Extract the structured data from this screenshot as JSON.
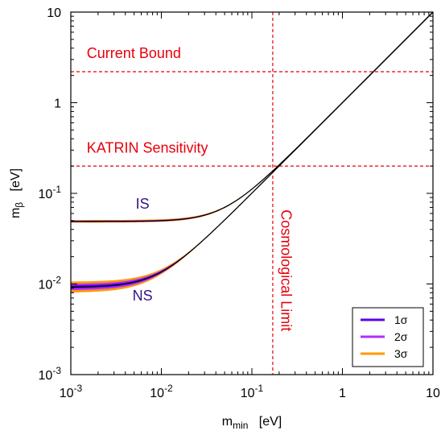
{
  "chart_data": {
    "type": "line",
    "xscale": "log",
    "yscale": "log",
    "xlim": [
      0.001,
      10
    ],
    "ylim": [
      0.001,
      10
    ],
    "xlabel": {
      "main": "m",
      "sub": "min",
      "unit": "[eV]"
    },
    "ylabel": {
      "main": "m",
      "sub": "β",
      "unit": "[eV]"
    },
    "x_ticks": [
      {
        "value": 0.001,
        "base": "10",
        "exp": "-3"
      },
      {
        "value": 0.01,
        "base": "10",
        "exp": "-2"
      },
      {
        "value": 0.1,
        "base": "10",
        "exp": "-1"
      },
      {
        "value": 1,
        "base": "1",
        "exp": ""
      },
      {
        "value": 10,
        "base": "10",
        "exp": ""
      }
    ],
    "y_ticks": [
      {
        "value": 0.001,
        "base": "10",
        "exp": "-3"
      },
      {
        "value": 0.01,
        "base": "10",
        "exp": "-2"
      },
      {
        "value": 0.1,
        "base": "10",
        "exp": "-1"
      },
      {
        "value": 1,
        "base": "1",
        "exp": ""
      },
      {
        "value": 10,
        "base": "10",
        "exp": ""
      }
    ],
    "reference_lines": [
      {
        "orientation": "horizontal",
        "value": 2.2,
        "label": "Current Bound",
        "color": "#e8000b",
        "label_x": 0.0015,
        "label_y": 3.1
      },
      {
        "orientation": "horizontal",
        "value": 0.2,
        "label": "KATRIN Sensitivity",
        "color": "#e8000b",
        "label_x": 0.0015,
        "label_y": 0.28
      },
      {
        "orientation": "vertical",
        "value": 0.17,
        "label": "Cosmological Limit",
        "color": "#e8000b",
        "label_x": 0.21,
        "label_y": 0.003
      }
    ],
    "band_labels": [
      {
        "text": "IS",
        "x": 0.0062,
        "y": 0.068,
        "color": "#33138c"
      },
      {
        "text": "NS",
        "x": 0.0062,
        "y": 0.0066,
        "color": "#33138c"
      }
    ],
    "hierarchies": [
      {
        "label": "IS",
        "low_mass_limit": {
          "central": 0.049,
          "sigma1": [
            0.0485,
            0.0495
          ],
          "sigma2": [
            0.048,
            0.05
          ],
          "sigma3": [
            0.0475,
            0.0508
          ]
        }
      },
      {
        "label": "NS",
        "low_mass_limit": {
          "central": 0.0092,
          "sigma1": [
            0.0089,
            0.0096
          ],
          "sigma2": [
            0.0085,
            0.01
          ],
          "sigma3": [
            0.008,
            0.0106
          ]
        }
      }
    ],
    "series": [
      {
        "name": "1σ",
        "color": "#5b00ea"
      },
      {
        "name": "2σ",
        "color": "#b22eff"
      },
      {
        "name": "3σ",
        "color": "#ff9900"
      }
    ],
    "legend": {
      "position": "bottom-right"
    },
    "grid": false
  }
}
